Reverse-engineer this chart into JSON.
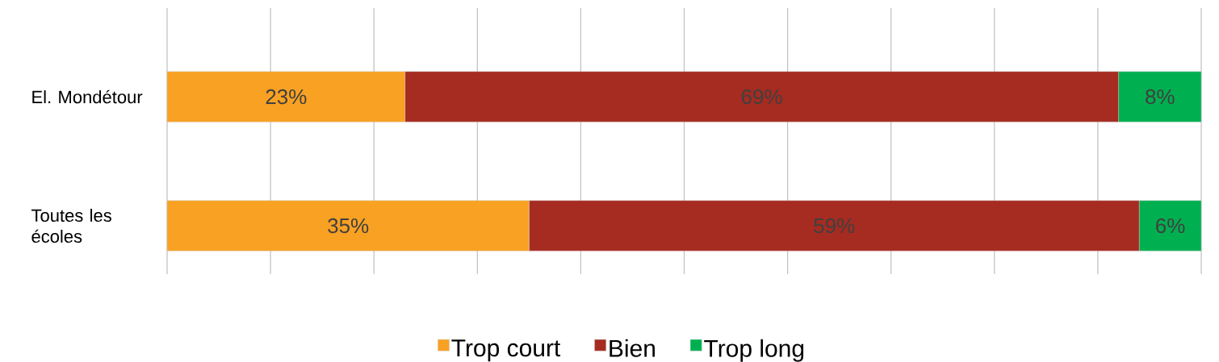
{
  "chart_data": {
    "type": "bar",
    "orientation": "horizontal",
    "stacked": true,
    "categories": [
      "El. Mondétour",
      "Toutes les écoles"
    ],
    "series": [
      {
        "name": "Trop court",
        "color": "#f9a122",
        "values": [
          23,
          35
        ],
        "value_labels": [
          "23%",
          "35%"
        ]
      },
      {
        "name": "Bien",
        "color": "#a62b20",
        "values": [
          69,
          59
        ],
        "value_labels": [
          "69%",
          "59%"
        ]
      },
      {
        "name": "Trop long",
        "color": "#00b050",
        "values": [
          8,
          6
        ],
        "value_labels": [
          "8%",
          "6%"
        ]
      }
    ],
    "grid": "x",
    "tick_labels": "y",
    "legend": "bottom"
  }
}
